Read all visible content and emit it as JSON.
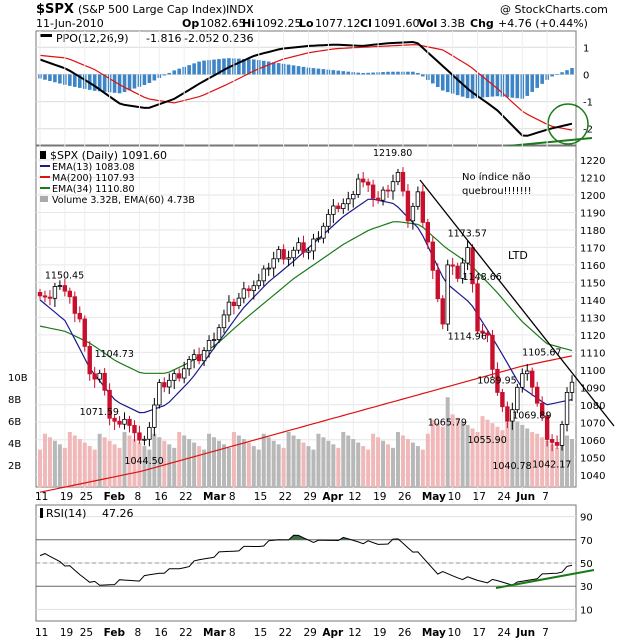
{
  "header": {
    "symbol": "$SPX",
    "name": "(S&P 500 Large Cap Index)",
    "exchange": "INDX",
    "watermark": "@ StockCharts.com",
    "date": "11-Jun-2010",
    "quote": {
      "open_label": "Op",
      "open": "1082.65",
      "high_label": "Hi",
      "high": "1092.25",
      "low_label": "Lo",
      "low": "1077.12",
      "close_label": "Cl",
      "close": "1091.60",
      "volume_label": "Vol",
      "volume": "3.3B",
      "change_label": "Chg",
      "change": "+4.76 (+0.44%)"
    }
  },
  "colors": {
    "up": "#ffffff",
    "down": "#c8102e",
    "ema13": "#1a1a8c",
    "ma200": "#e01010",
    "ema34": "#1a7a1a",
    "ppo": "#000000",
    "signal": "#e01010",
    "histogram": "#3d85c6",
    "rsi": "#000000",
    "rsi_fill": "#3c6e4a",
    "volume_up": "#b8b8b8",
    "volume_down": "#f0b8b8",
    "annotation": "#1a7a1a"
  },
  "chart_data": [
    {
      "type": "line",
      "panel": "ppo",
      "legend": {
        "label": "PPO(12,26,9)",
        "value1": "-1.816",
        "value2": "-2.052",
        "value3": "0.236"
      },
      "yticks": [
        1,
        0,
        -1,
        -2
      ],
      "ylim": [
        -2.6,
        1.6
      ],
      "x_index": [
        0,
        5,
        10,
        15,
        20,
        25,
        30,
        35,
        40,
        45,
        50,
        55,
        60,
        65,
        70,
        75,
        80,
        85,
        90,
        95,
        99
      ],
      "series": [
        {
          "name": "PPO",
          "values": [
            0.55,
            0.2,
            -0.4,
            -1.1,
            -1.25,
            -0.9,
            -0.3,
            0.25,
            0.7,
            0.95,
            1.05,
            1.1,
            1.05,
            1.15,
            1.2,
            0.3,
            -0.6,
            -1.3,
            -2.3,
            -2.0,
            -1.816
          ]
        },
        {
          "name": "Signal",
          "values": [
            0.7,
            0.6,
            0.2,
            -0.4,
            -0.9,
            -1.05,
            -0.8,
            -0.35,
            0.15,
            0.55,
            0.8,
            0.95,
            1.0,
            1.05,
            1.1,
            0.9,
            0.3,
            -0.5,
            -1.4,
            -1.9,
            -2.052
          ]
        },
        {
          "name": "Histogram",
          "values": [
            -0.15,
            -0.4,
            -0.6,
            -0.7,
            -0.35,
            0.15,
            0.5,
            0.6,
            0.55,
            0.4,
            0.25,
            0.15,
            0.05,
            0.1,
            0.1,
            -0.6,
            -0.9,
            -0.8,
            -0.9,
            -0.1,
            0.236
          ]
        }
      ]
    },
    {
      "type": "candlestick",
      "panel": "price",
      "legend": {
        "price": "$SPX (Daily) 1091.60",
        "ema13": "EMA(13) 1083.08",
        "ma200": "MA(200) 1107.93",
        "ema34": "EMA(34) 1110.80",
        "volume": "Volume 3.32B, EMA(60) 4.73B"
      },
      "yticks": [
        1040,
        1050,
        1060,
        1070,
        1080,
        1090,
        1100,
        1110,
        1120,
        1130,
        1140,
        1150,
        1160,
        1170,
        1180,
        1190,
        1200,
        1210,
        1220
      ],
      "ylim": [
        1033,
        1228
      ],
      "volume_ticks": [
        "2B",
        "4B",
        "6B",
        "8B",
        "10B"
      ],
      "volume_ylim": [
        0,
        10
      ],
      "x_labels": [
        {
          "i": 0,
          "t": "11"
        },
        {
          "i": 5,
          "t": "19"
        },
        {
          "i": 9,
          "t": "25"
        },
        {
          "i": 14,
          "t": "Feb"
        },
        {
          "i": 20,
          "t": "8"
        },
        {
          "i": 24,
          "t": "16"
        },
        {
          "i": 29,
          "t": "22"
        },
        {
          "i": 34,
          "t": "Mar"
        },
        {
          "i": 39,
          "t": "8"
        },
        {
          "i": 44,
          "t": "15"
        },
        {
          "i": 49,
          "t": "22"
        },
        {
          "i": 54,
          "t": "29"
        },
        {
          "i": 58,
          "t": "Apr"
        },
        {
          "i": 63,
          "t": "12"
        },
        {
          "i": 68,
          "t": "19"
        },
        {
          "i": 73,
          "t": "26"
        },
        {
          "i": 78,
          "t": "May"
        },
        {
          "i": 83,
          "t": "10"
        },
        {
          "i": 88,
          "t": "17"
        },
        {
          "i": 93,
          "t": "24"
        },
        {
          "i": 97,
          "t": "Jun"
        },
        {
          "i": 102,
          "t": "7"
        }
      ],
      "anchors": [
        [
          0,
          1145
        ],
        [
          2,
          1140
        ],
        [
          4,
          1150
        ],
        [
          6,
          1140
        ],
        [
          8,
          1130
        ],
        [
          10,
          1095
        ],
        [
          12,
          1098
        ],
        [
          14,
          1075
        ],
        [
          16,
          1068
        ],
        [
          18,
          1070
        ],
        [
          20,
          1058
        ],
        [
          22,
          1068
        ],
        [
          24,
          1090
        ],
        [
          26,
          1094
        ],
        [
          28,
          1098
        ],
        [
          30,
          1105
        ],
        [
          32,
          1107
        ],
        [
          34,
          1115
        ],
        [
          36,
          1125
        ],
        [
          38,
          1136
        ],
        [
          40,
          1141
        ],
        [
          42,
          1148
        ],
        [
          44,
          1150
        ],
        [
          46,
          1160
        ],
        [
          48,
          1167
        ],
        [
          50,
          1165
        ],
        [
          52,
          1170
        ],
        [
          54,
          1168
        ],
        [
          56,
          1178
        ],
        [
          58,
          1188
        ],
        [
          60,
          1194
        ],
        [
          62,
          1196
        ],
        [
          64,
          1210
        ],
        [
          66,
          1203
        ],
        [
          68,
          1197
        ],
        [
          70,
          1205
        ],
        [
          72,
          1212
        ],
        [
          74,
          1187
        ],
        [
          76,
          1200
        ],
        [
          78,
          1174
        ],
        [
          80,
          1138
        ],
        [
          81,
          1128
        ],
        [
          82,
          1160
        ],
        [
          84,
          1155
        ],
        [
          86,
          1169
        ],
        [
          88,
          1124
        ],
        [
          90,
          1118
        ],
        [
          92,
          1088
        ],
        [
          94,
          1068
        ],
        [
          96,
          1090
        ],
        [
          98,
          1102
        ],
        [
          100,
          1080
        ],
        [
          102,
          1062
        ],
        [
          104,
          1055
        ],
        [
          106,
          1088
        ],
        [
          107,
          1092
        ]
      ],
      "series": [
        {
          "name": "EMA(13)",
          "values": [
            1140,
            1128,
            1100,
            1082,
            1075,
            1080,
            1095,
            1115,
            1135,
            1150,
            1162,
            1175,
            1188,
            1198,
            1195,
            1180,
            1150,
            1138,
            1115,
            1090,
            1080,
            1083
          ]
        },
        {
          "name": "MA(200)",
          "values": [
            1030,
            1033,
            1036,
            1039,
            1042,
            1046,
            1050,
            1054,
            1058,
            1062,
            1066,
            1070,
            1074,
            1078,
            1082,
            1086,
            1090,
            1094,
            1098,
            1102,
            1105,
            1108
          ]
        },
        {
          "name": "EMA(34)",
          "values": [
            1125,
            1122,
            1115,
            1105,
            1098,
            1098,
            1105,
            1115,
            1128,
            1140,
            1152,
            1162,
            1172,
            1180,
            1185,
            1183,
            1170,
            1160,
            1145,
            1128,
            1115,
            1111
          ]
        }
      ],
      "callouts": [
        {
          "t": "1150.45",
          "i": 5,
          "v": 1150
        },
        {
          "t": "1104.73",
          "i": 15,
          "v": 1105
        },
        {
          "t": "1071.59",
          "i": 12,
          "v": 1072
        },
        {
          "t": "1044.50",
          "i": 21,
          "v": 1044
        },
        {
          "t": "1219.80",
          "i": 71,
          "v": 1220
        },
        {
          "t": "1173.57",
          "i": 86,
          "v": 1174
        },
        {
          "t": "1148.66",
          "i": 89,
          "v": 1149
        },
        {
          "t": "1114.96",
          "i": 86,
          "v": 1115
        },
        {
          "t": "1089.95",
          "i": 92,
          "v": 1090
        },
        {
          "t": "1065.79",
          "i": 82,
          "v": 1066
        },
        {
          "t": "1055.90",
          "i": 90,
          "v": 1056
        },
        {
          "t": "1040.78",
          "i": 95,
          "v": 1041
        },
        {
          "t": "1069.89",
          "i": 99,
          "v": 1070
        },
        {
          "t": "1105.67",
          "i": 101,
          "v": 1106
        },
        {
          "t": "1042.17",
          "i": 103,
          "v": 1042
        }
      ],
      "annotations": {
        "note1": "No índice não",
        "note2": "quebrou!!!!!!!",
        "ltd": "LTD"
      }
    },
    {
      "type": "line",
      "panel": "rsi",
      "legend": {
        "label": "RSI(14)",
        "value": "47.26"
      },
      "yticks": [
        90,
        70,
        50,
        30,
        10
      ],
      "ylim": [
        0,
        100
      ],
      "x_index": [
        0,
        4,
        8,
        12,
        16,
        20,
        24,
        28,
        32,
        36,
        40,
        44,
        48,
        52,
        56,
        60,
        64,
        68,
        72,
        76,
        80,
        84,
        88,
        92,
        96,
        100,
        104,
        107
      ],
      "values": [
        58,
        52,
        40,
        30,
        34,
        36,
        42,
        45,
        52,
        58,
        62,
        65,
        70,
        73,
        68,
        71,
        69,
        66,
        70,
        58,
        42,
        38,
        35,
        34,
        32,
        38,
        42,
        47.26
      ]
    }
  ]
}
